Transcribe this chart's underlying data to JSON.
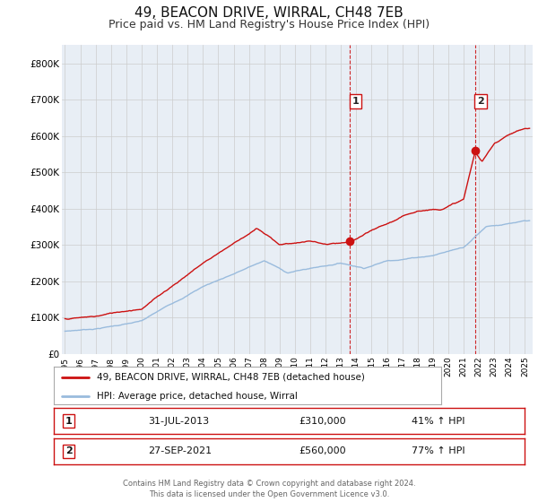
{
  "title": "49, BEACON DRIVE, WIRRAL, CH48 7EB",
  "subtitle": "Price paid vs. HM Land Registry's House Price Index (HPI)",
  "title_fontsize": 11,
  "subtitle_fontsize": 9,
  "background_color": "#ffffff",
  "plot_background_color": "#e8eef5",
  "grid_color": "#cccccc",
  "hpi_line_color": "#99bbdd",
  "price_line_color": "#cc1111",
  "sale1_date": 2013.58,
  "sale2_date": 2021.74,
  "sale1_price": 310000,
  "sale2_price": 560000,
  "ylim": [
    0,
    850000
  ],
  "xlim_start": 1994.8,
  "xlim_end": 2025.5,
  "legend_label1": "49, BEACON DRIVE, WIRRAL, CH48 7EB (detached house)",
  "legend_label2": "HPI: Average price, detached house, Wirral",
  "table_row1": [
    "1",
    "31-JUL-2013",
    "£310,000",
    "41% ↑ HPI"
  ],
  "table_row2": [
    "2",
    "27-SEP-2021",
    "£560,000",
    "77% ↑ HPI"
  ],
  "footer": "Contains HM Land Registry data © Crown copyright and database right 2024.\nThis data is licensed under the Open Government Licence v3.0.",
  "ytick_labels": [
    "£0",
    "£100K",
    "£200K",
    "£300K",
    "£400K",
    "£500K",
    "£600K",
    "£700K",
    "£800K"
  ],
  "ytick_values": [
    0,
    100000,
    200000,
    300000,
    400000,
    500000,
    600000,
    700000,
    800000
  ]
}
